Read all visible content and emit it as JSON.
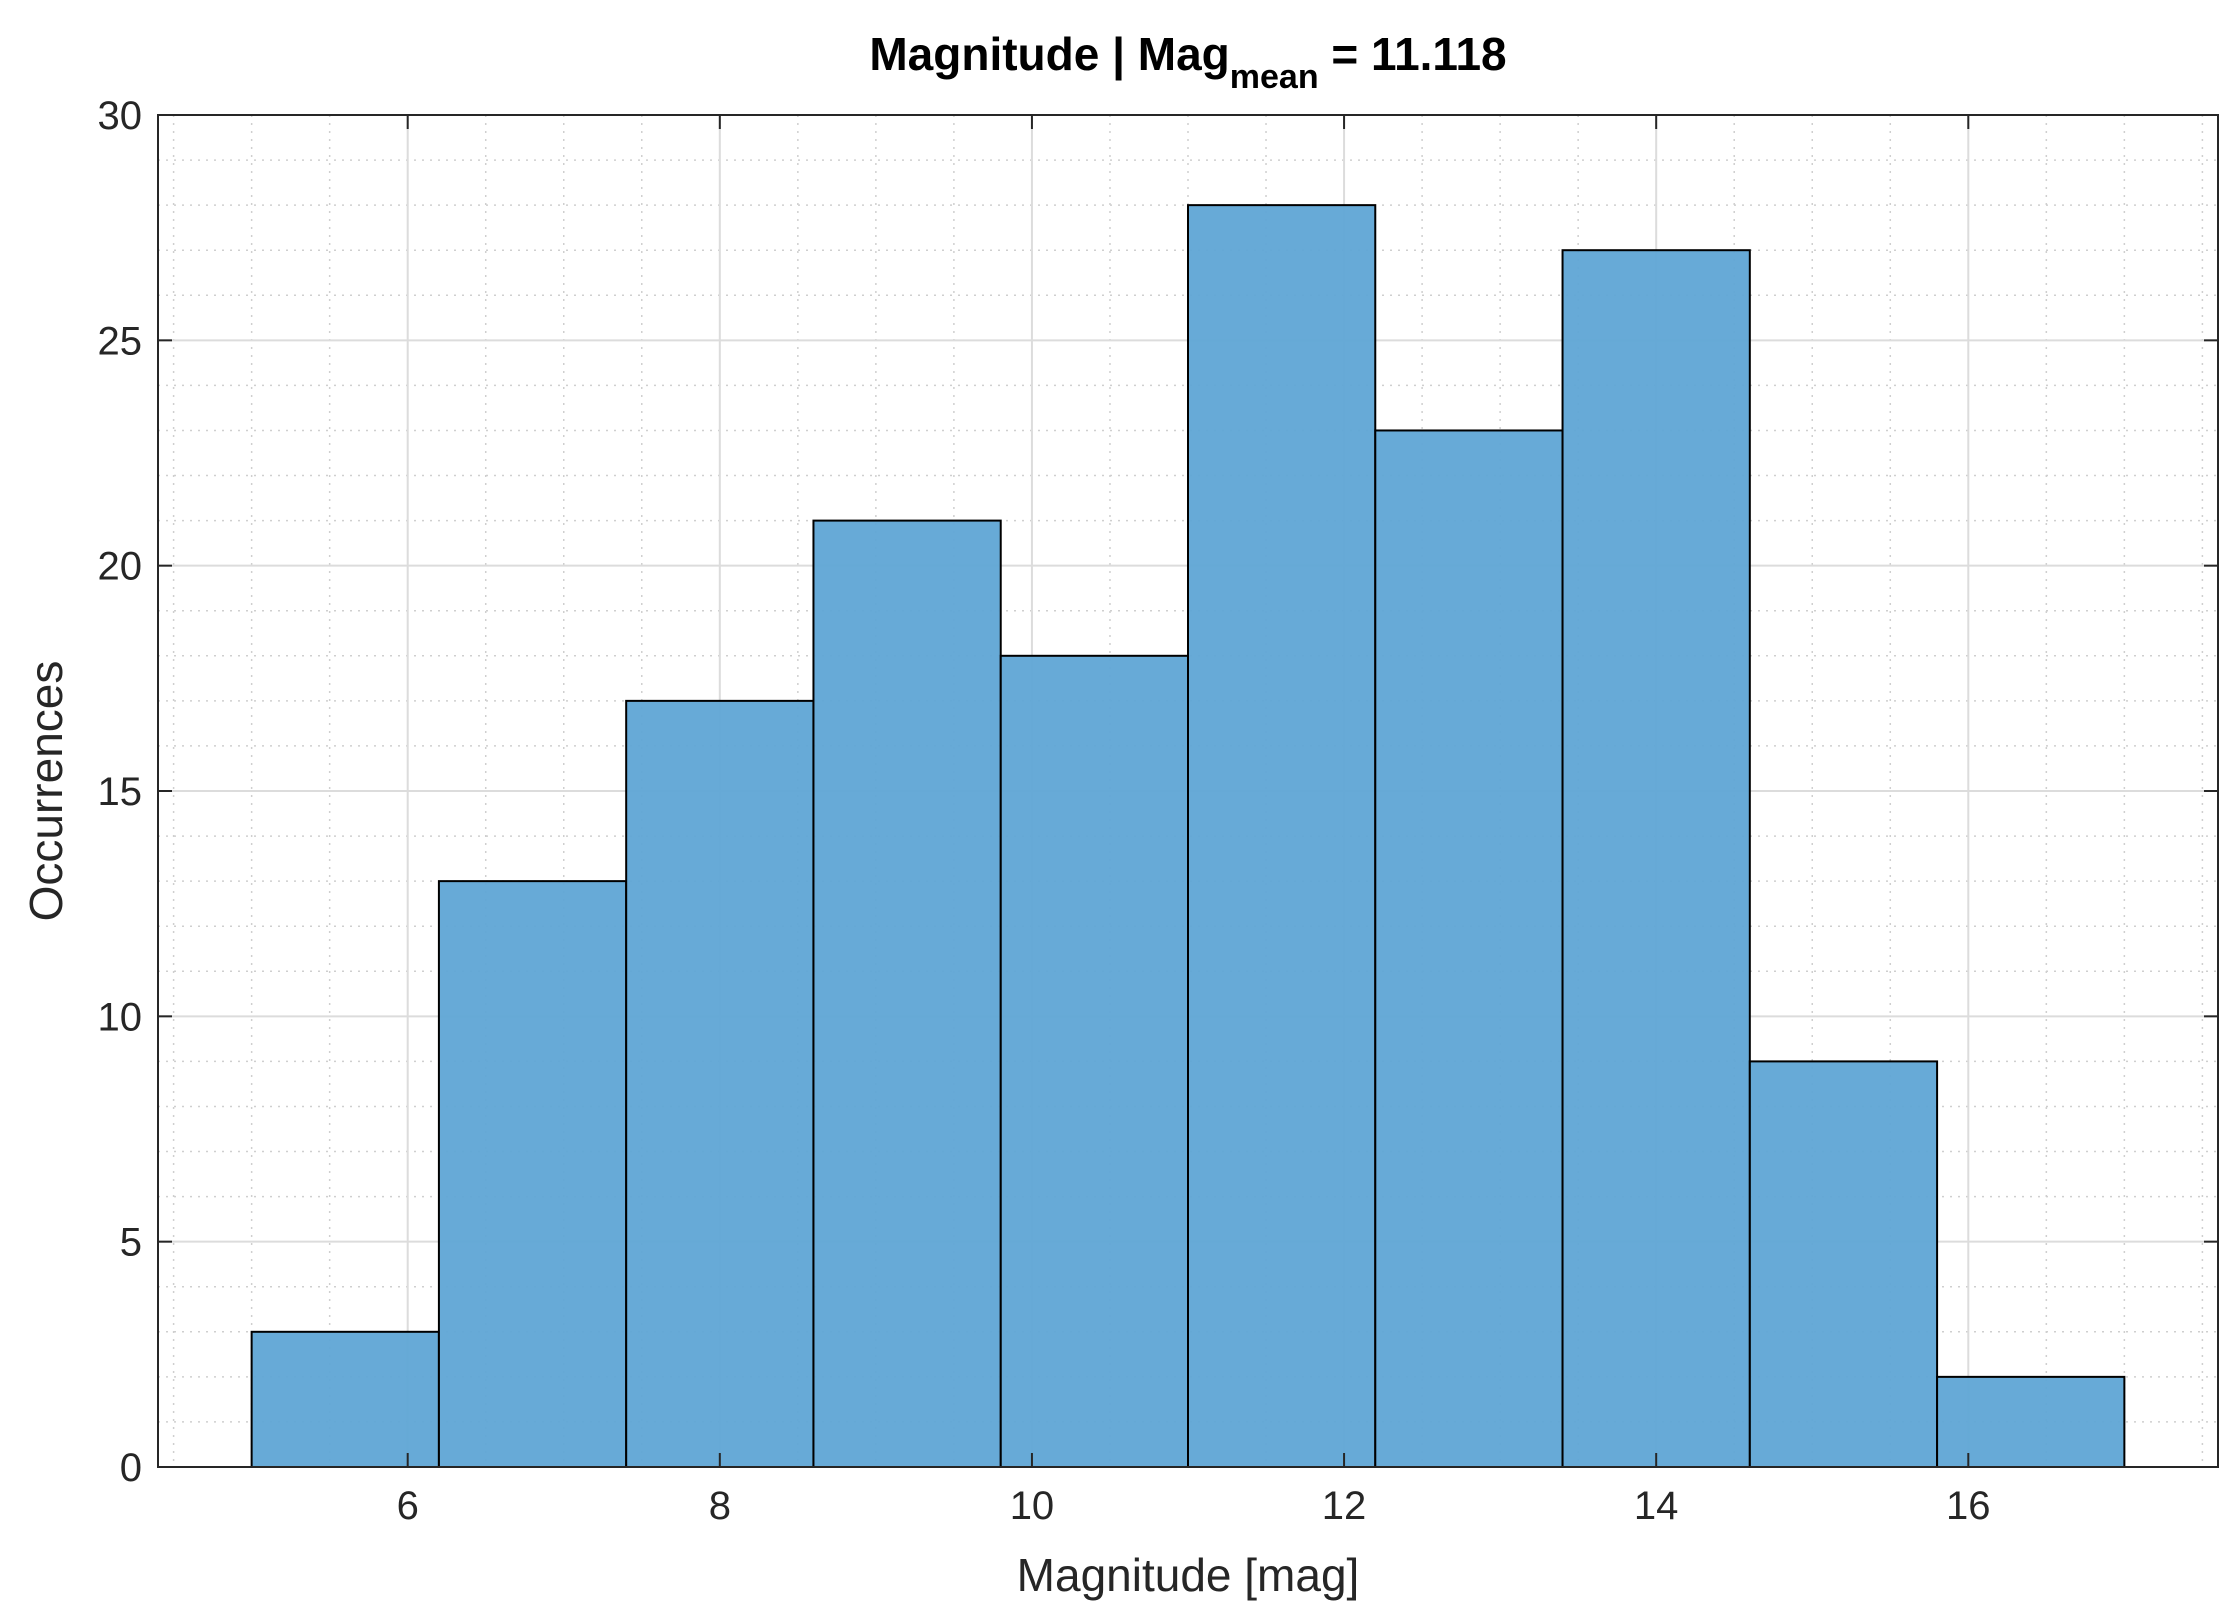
{
  "chart_data": {
    "type": "bar",
    "title": {
      "main": "Magnitude | Mag",
      "subscript": "mean",
      "suffix": " = 11.118"
    },
    "xlabel": "Magnitude [mag]",
    "ylabel": "Occurrences",
    "xlim": [
      4.4,
      17.6
    ],
    "ylim": [
      0,
      30
    ],
    "x_ticks": [
      6,
      8,
      10,
      12,
      14,
      16
    ],
    "y_ticks": [
      0,
      5,
      10,
      15,
      20,
      25,
      30
    ],
    "bin_edges": [
      5,
      6.2,
      7.4,
      8.6,
      9.8,
      11,
      12.2,
      13.4,
      14.6,
      15.8,
      17
    ],
    "values": [
      3,
      13,
      17,
      21,
      18,
      28,
      23,
      27,
      9,
      2
    ],
    "grid": true,
    "minor_grid": true,
    "colors": {
      "bar_fill": "#5fa5d5",
      "bar_edge": "#000000",
      "axis": "#262626",
      "grid_major": "#dcdcdc",
      "grid_minor": "#cfcfcf"
    }
  }
}
